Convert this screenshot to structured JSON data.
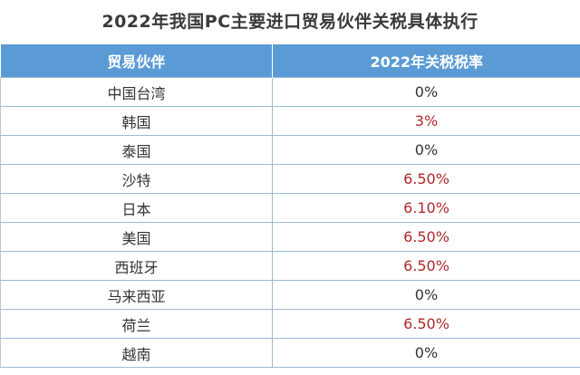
{
  "title": "2022年我国PC主要进口贸易伙伴关税具体执行",
  "table": {
    "headers": [
      "贸易伙伴",
      "2022年关税税率"
    ],
    "rows": [
      {
        "partner": "中国台湾",
        "rate": "0%",
        "highlight": false
      },
      {
        "partner": "韩国",
        "rate": "3%",
        "highlight": true
      },
      {
        "partner": "泰国",
        "rate": "0%",
        "highlight": false
      },
      {
        "partner": "沙特",
        "rate": "6.50%",
        "highlight": true
      },
      {
        "partner": "日本",
        "rate": "6.10%",
        "highlight": true
      },
      {
        "partner": "美国",
        "rate": "6.50%",
        "highlight": true
      },
      {
        "partner": "西班牙",
        "rate": "6.50%",
        "highlight": true
      },
      {
        "partner": "马来西亚",
        "rate": "0%",
        "highlight": false
      },
      {
        "partner": "荷兰",
        "rate": "6.50%",
        "highlight": true
      },
      {
        "partner": "越南",
        "rate": "0%",
        "highlight": false
      }
    ]
  },
  "colors": {
    "header_bg": "#5b9bd5",
    "highlight_text": "#b0282a",
    "normal_text": "#333333"
  }
}
